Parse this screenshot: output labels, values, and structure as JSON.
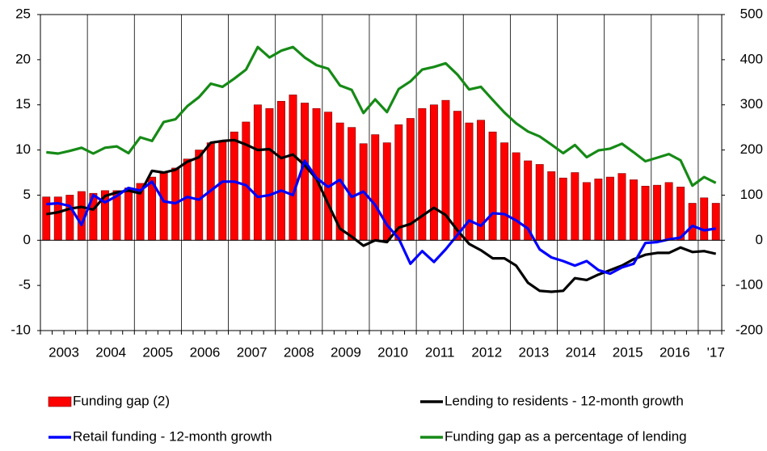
{
  "chart_data": {
    "type": "bar",
    "categories": [
      null,
      "2003",
      null,
      null,
      null,
      "2004",
      null,
      null,
      null,
      "2005",
      null,
      null,
      null,
      "2006",
      null,
      null,
      null,
      "2007",
      null,
      null,
      null,
      "2008",
      null,
      null,
      null,
      "2009",
      null,
      null,
      null,
      "2010",
      null,
      null,
      null,
      "2011",
      null,
      null,
      null,
      "2012",
      null,
      null,
      null,
      "2013",
      null,
      null,
      null,
      "2014",
      null,
      null,
      null,
      "2015",
      null,
      null,
      null,
      "2016",
      null,
      null,
      null,
      "'17"
    ],
    "series": [
      {
        "name": "Funding gap (2)",
        "type": "bar",
        "color": "#ff0000",
        "values": [
          4.8,
          4.8,
          5.0,
          5.4,
          5.2,
          5.5,
          5.5,
          5.8,
          6.3,
          7.0,
          7.6,
          8.0,
          9.0,
          10.0,
          10.8,
          11.0,
          12.0,
          13.1,
          15.0,
          14.6,
          15.4,
          16.1,
          15.2,
          14.6,
          14.2,
          13.0,
          12.5,
          10.7,
          11.7,
          10.8,
          12.8,
          13.5,
          14.6,
          15.0,
          15.5,
          14.3,
          13.0,
          13.3,
          12.0,
          10.8,
          9.7,
          8.8,
          8.4,
          7.6,
          6.9,
          7.5,
          6.4,
          6.8,
          7.0,
          7.4,
          6.7,
          6.0,
          6.1,
          6.4,
          5.9,
          4.1,
          4.7,
          4.1
        ]
      },
      {
        "name": "Lending to residents - 12-month growth",
        "type": "line",
        "color": "#000000",
        "values": [
          2.9,
          3.1,
          3.5,
          3.7,
          3.4,
          4.9,
          5.3,
          5.5,
          5.2,
          7.7,
          7.5,
          7.8,
          8.7,
          9.2,
          10.8,
          11.0,
          11.1,
          10.6,
          10.0,
          10.1,
          9.1,
          9.5,
          8.3,
          6.8,
          4.0,
          1.3,
          0.4,
          -0.6,
          0.0,
          -0.2,
          1.4,
          1.8,
          2.7,
          3.6,
          2.8,
          1.1,
          -0.4,
          -1.1,
          -2.0,
          -2.0,
          -2.8,
          -4.7,
          -5.6,
          -5.7,
          -5.6,
          -4.2,
          -4.4,
          -3.8,
          -3.3,
          -2.8,
          -2.1,
          -1.6,
          -1.4,
          -1.4,
          -0.8,
          -1.3,
          -1.2,
          -1.5
        ]
      },
      {
        "name": "Retail funding - 12-month growth",
        "type": "line",
        "color": "#0000ff",
        "values": [
          4.0,
          4.1,
          3.8,
          1.7,
          5.0,
          4.2,
          4.9,
          5.8,
          5.5,
          6.5,
          4.3,
          4.1,
          4.8,
          4.5,
          5.5,
          6.5,
          6.5,
          6.1,
          4.8,
          5.0,
          5.5,
          5.0,
          8.8,
          6.9,
          5.9,
          6.7,
          4.8,
          5.4,
          3.9,
          1.7,
          0.2,
          -2.6,
          -1.2,
          -2.4,
          -1.0,
          0.6,
          2.2,
          1.6,
          3.0,
          2.9,
          2.2,
          1.3,
          -1.0,
          -1.9,
          -2.3,
          -2.8,
          -2.3,
          -3.3,
          -3.7,
          -3.0,
          -2.6,
          -0.3,
          -0.2,
          0.1,
          0.3,
          1.6,
          1.1,
          1.3
        ]
      },
      {
        "name": "Funding gap as a percentage of lending",
        "type": "line",
        "axis": "y2",
        "color": "#168a16",
        "values": [
          195,
          192,
          198,
          205,
          192,
          205,
          208,
          193,
          228,
          220,
          262,
          268,
          297,
          317,
          347,
          340,
          358,
          378,
          428,
          405,
          420,
          428,
          405,
          388,
          380,
          343,
          333,
          282,
          312,
          284,
          335,
          352,
          378,
          384,
          392,
          367,
          334,
          340,
          311,
          283,
          259,
          241,
          230,
          212,
          193,
          211,
          184,
          199,
          203,
          214,
          195,
          175,
          183,
          191,
          177,
          121,
          140,
          127
        ]
      }
    ],
    "ylim": [
      -10,
      25
    ],
    "yticks": [
      -10,
      -5,
      0,
      5,
      10,
      15,
      20,
      25
    ],
    "y2lim": [
      -200,
      500
    ],
    "y2ticks": [
      -200,
      -100,
      0,
      100,
      200,
      300,
      400,
      500
    ]
  }
}
